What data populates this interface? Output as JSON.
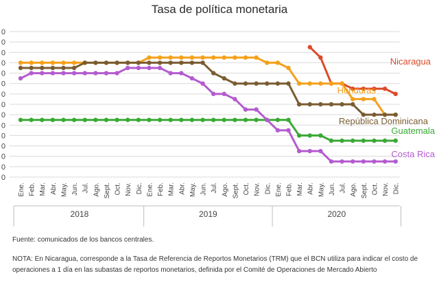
{
  "chart_data": {
    "type": "line",
    "title": "Tasa de política monetaria",
    "xlabel": "",
    "ylabel": "",
    "ylim": [
      0,
      7
    ],
    "y_ticks": [
      "0",
      "0",
      "0",
      "0",
      "0",
      "0",
      "0",
      "0",
      "0",
      "0",
      "0",
      "0",
      "0",
      "0",
      "0"
    ],
    "categories": [
      "Ene.",
      "Feb.",
      "Mar.",
      "Abr.",
      "May.",
      "Jun.",
      "Jul.",
      "Ago.",
      "Sept.",
      "Oct.",
      "Nov.",
      "Dic.",
      "Ene.",
      "Feb.",
      "Mar.",
      "Abr.",
      "May.",
      "Jun.",
      "Jul.",
      "Ago.",
      "Sept.",
      "Oct.",
      "Nov.",
      "Dic.",
      "Ene.",
      "Feb.",
      "Mar.",
      "Abr.",
      "May.",
      "Jun.",
      "Jul.",
      "Ago.",
      "Sept.",
      "Oct.",
      "Nov.",
      "Dic."
    ],
    "years": [
      "2018",
      "2019",
      "2020"
    ],
    "grid": true,
    "legend": "inline labels at right",
    "series": [
      {
        "name": "Nicaragua",
        "color": "#dd4a2a",
        "values": [
          null,
          null,
          null,
          null,
          null,
          null,
          null,
          null,
          null,
          null,
          null,
          null,
          null,
          null,
          null,
          null,
          null,
          null,
          null,
          null,
          null,
          null,
          null,
          null,
          null,
          null,
          null,
          6.25,
          5.75,
          4.5,
          4.5,
          4.25,
          4.25,
          4.25,
          4.25,
          4.0
        ]
      },
      {
        "name": "Honduras",
        "color": "#f5a01a",
        "values": [
          5.5,
          5.5,
          5.5,
          5.5,
          5.5,
          5.5,
          5.5,
          5.5,
          5.5,
          5.5,
          5.5,
          5.5,
          5.75,
          5.75,
          5.75,
          5.75,
          5.75,
          5.75,
          5.75,
          5.75,
          5.75,
          5.75,
          5.75,
          5.5,
          5.5,
          5.25,
          4.5,
          4.5,
          4.5,
          4.5,
          4.5,
          3.75,
          3.75,
          3.75,
          3.0,
          3.0
        ]
      },
      {
        "name": "República Dominicana",
        "color": "#7a5c32",
        "values": [
          5.25,
          5.25,
          5.25,
          5.25,
          5.25,
          5.25,
          5.5,
          5.5,
          5.5,
          5.5,
          5.5,
          5.5,
          5.5,
          5.5,
          5.5,
          5.5,
          5.5,
          5.5,
          5.0,
          4.75,
          4.5,
          4.5,
          4.5,
          4.5,
          4.5,
          4.5,
          3.5,
          3.5,
          3.5,
          3.5,
          3.5,
          3.5,
          3.0,
          3.0,
          3.0,
          3.0
        ]
      },
      {
        "name": "Guatemala",
        "color": "#3aa935",
        "values": [
          2.75,
          2.75,
          2.75,
          2.75,
          2.75,
          2.75,
          2.75,
          2.75,
          2.75,
          2.75,
          2.75,
          2.75,
          2.75,
          2.75,
          2.75,
          2.75,
          2.75,
          2.75,
          2.75,
          2.75,
          2.75,
          2.75,
          2.75,
          2.75,
          2.75,
          2.75,
          2.0,
          2.0,
          2.0,
          1.75,
          1.75,
          1.75,
          1.75,
          1.75,
          1.75,
          1.75
        ]
      },
      {
        "name": "Costa Rica",
        "color": "#b45bd0",
        "values": [
          4.75,
          5.0,
          5.0,
          5.0,
          5.0,
          5.0,
          5.0,
          5.0,
          5.0,
          5.0,
          5.25,
          5.25,
          5.25,
          5.25,
          5.0,
          5.0,
          4.75,
          4.5,
          4.0,
          4.0,
          3.75,
          3.25,
          3.25,
          2.75,
          2.25,
          2.25,
          1.25,
          1.25,
          1.25,
          0.75,
          0.75,
          0.75,
          0.75,
          0.75,
          0.75,
          0.75
        ]
      }
    ]
  },
  "source": "Fuente: comunicados de los bancos centrales.",
  "note": "NOTA: En Nicaragua, corresponde a la Tasa de Referencia de Reportos Monetarios (TRM) que el BCN utiliza para indicar el costo de operaciones a 1 día en las subastas de reportos monetarios, definida por el Comité de Operaciones de Mercado Abierto"
}
